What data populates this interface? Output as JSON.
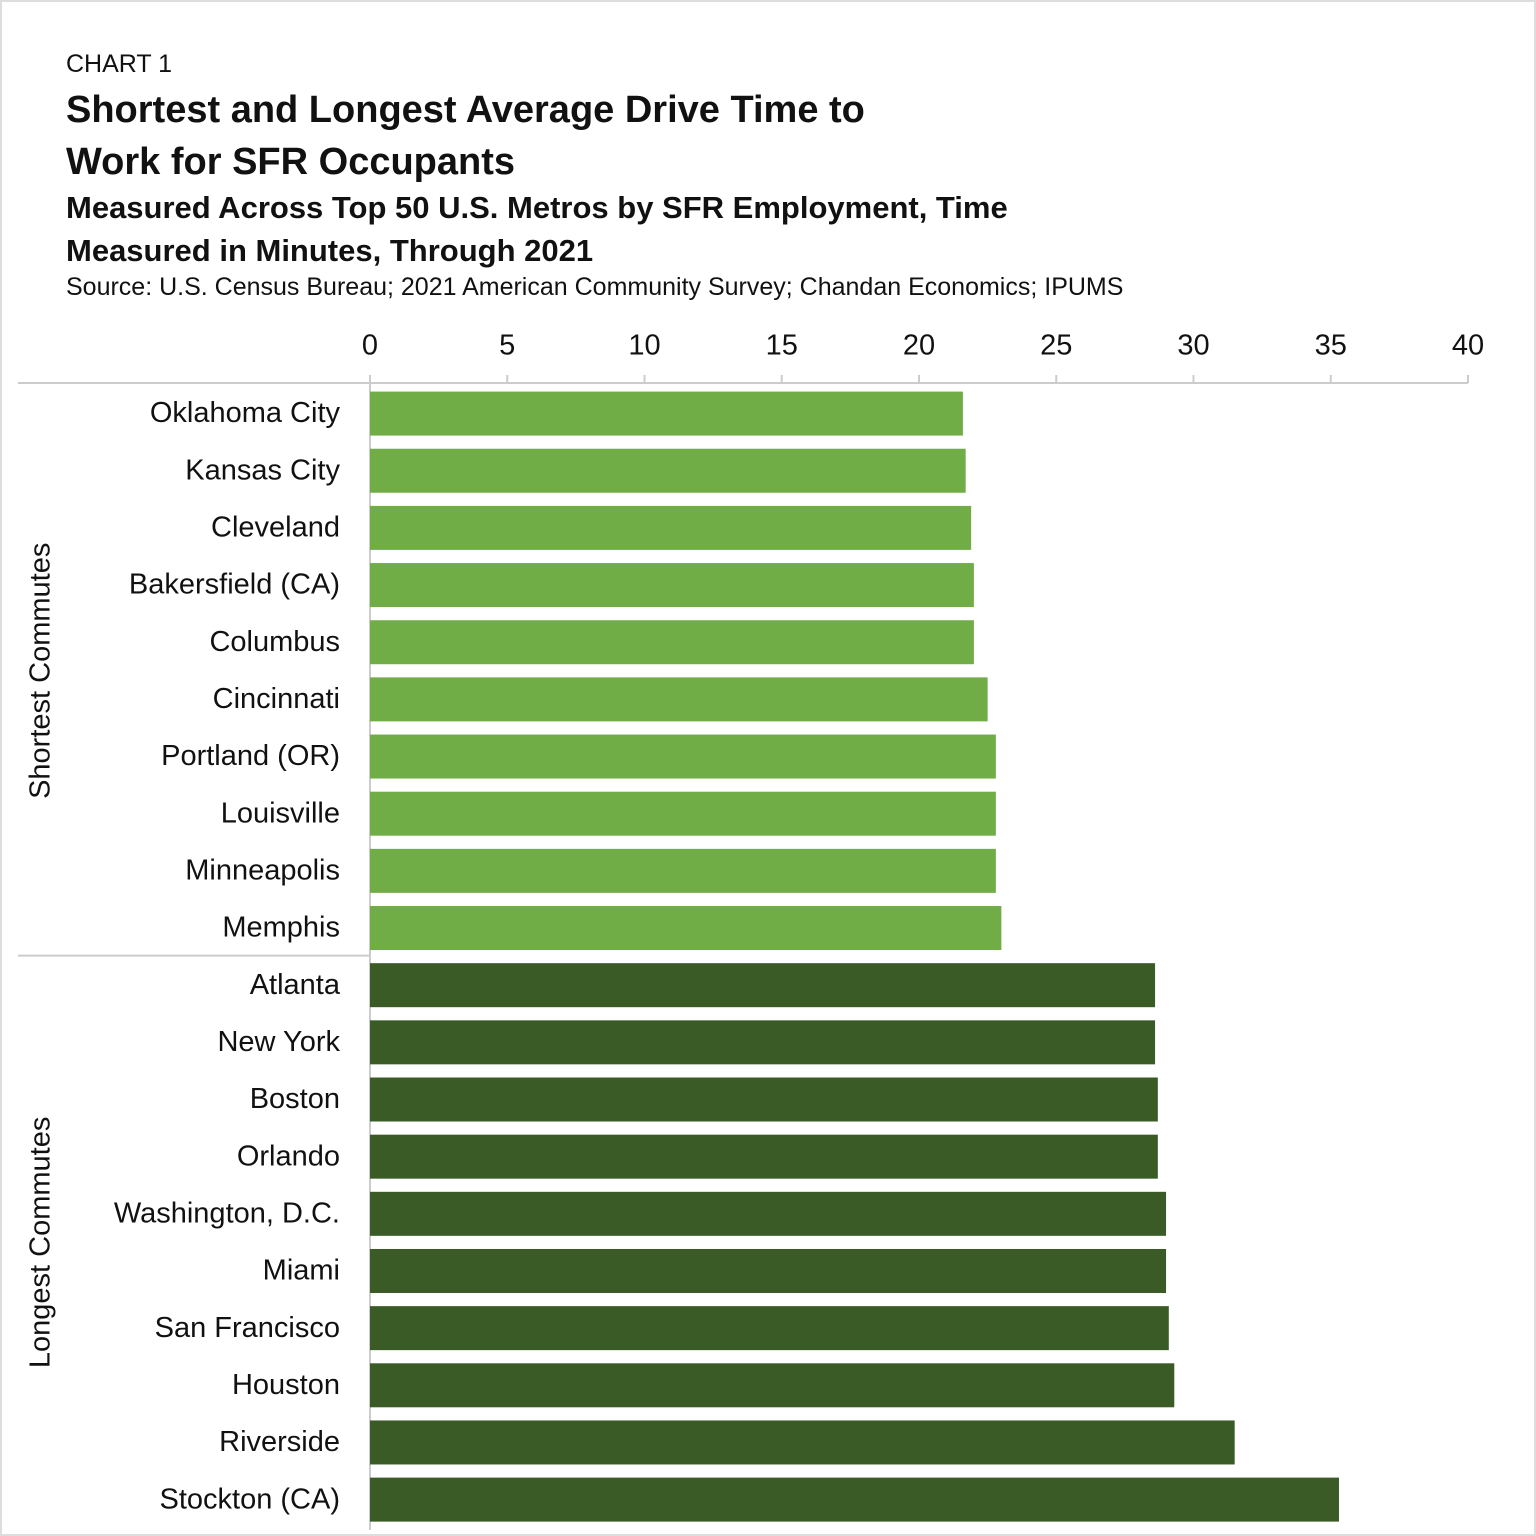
{
  "chart_data": {
    "type": "grouped-hbar",
    "kicker": "CHART 1",
    "title": "Shortest and Longest Average Drive Time to Work for SFR Occupants",
    "subtitle": "Measured Across Top 50 U.S. Metros by SFR Employment, Time Measured in Minutes, Through 2021",
    "source": "Source: U.S. Census Bureau; 2021 American Community Survey; Chandan Economics; IPUMS",
    "xlim": [
      0,
      40
    ],
    "xticks": [
      0,
      5,
      10,
      15,
      20,
      25,
      30,
      35,
      40
    ],
    "groups": [
      {
        "name": "Shortest Commutes",
        "color": "#70ad47",
        "categories": [
          "Oklahoma City",
          "Kansas City",
          "Cleveland",
          "Bakersfield (CA)",
          "Columbus",
          "Cincinnati",
          "Portland (OR)",
          "Louisville",
          "Minneapolis",
          "Memphis"
        ],
        "values": [
          21.6,
          21.7,
          21.9,
          22.0,
          22.0,
          22.5,
          22.8,
          22.8,
          22.8,
          23.0
        ]
      },
      {
        "name": "Longest Commutes",
        "color": "#3a5a26",
        "categories": [
          "Atlanta",
          "New York",
          "Boston",
          "Orlando",
          "Washington, D.C.",
          "Miami",
          "San Francisco",
          "Houston",
          "Riverside",
          "Stockton (CA)"
        ],
        "values": [
          28.6,
          28.6,
          28.7,
          28.7,
          29.0,
          29.0,
          29.1,
          29.3,
          31.5,
          35.3
        ]
      }
    ]
  }
}
